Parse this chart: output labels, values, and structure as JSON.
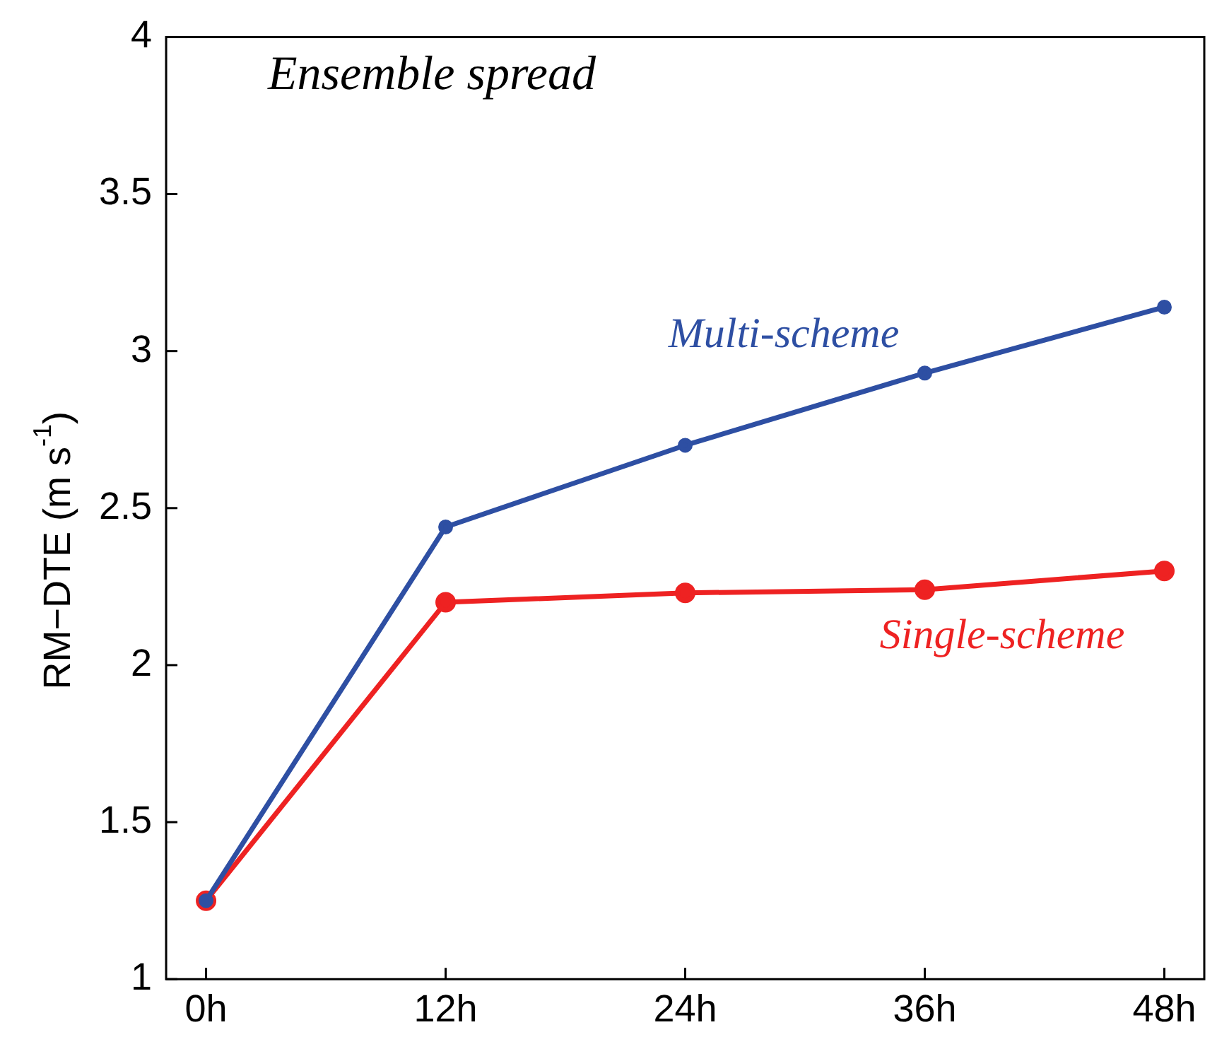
{
  "chart_data": {
    "type": "line",
    "title": "Ensemble spread",
    "ylabel": "RM−DTE (m s$^{-1}$)",
    "x": [
      0,
      12,
      24,
      36,
      48
    ],
    "xlim": [
      -2,
      50
    ],
    "xticks": [
      {
        "value": 0,
        "label": "0h"
      },
      {
        "value": 12,
        "label": "12h"
      },
      {
        "value": 24,
        "label": "24h"
      },
      {
        "value": 36,
        "label": "36h"
      },
      {
        "value": 48,
        "label": "48h"
      }
    ],
    "ylim": [
      1,
      4
    ],
    "yticks": [
      1,
      1.5,
      2,
      2.5,
      3,
      3.5,
      4
    ],
    "marker": "circle",
    "line_style": "solid",
    "series": [
      {
        "name": "Multi-scheme",
        "color": "#2e4fa3",
        "values": [
          1.25,
          2.44,
          2.7,
          2.93,
          3.14
        ]
      },
      {
        "name": "Single-scheme",
        "color": "#ee2222",
        "values": [
          1.25,
          2.2,
          2.23,
          2.24,
          2.3
        ]
      }
    ]
  }
}
